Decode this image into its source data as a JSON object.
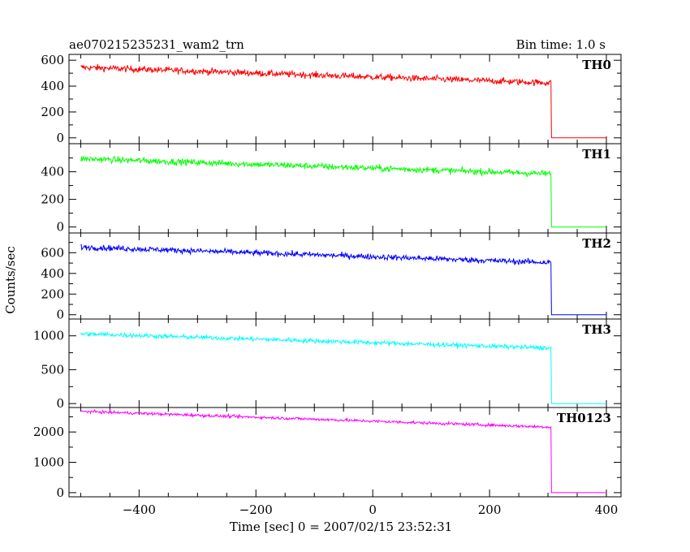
{
  "header": {
    "title": "ae070215235231_wam2_trn",
    "bin_time": "Bin time: 1.0 s"
  },
  "chart_data": {
    "type": "line",
    "title": "ae070215235231_wam2_trn",
    "subtitle": "Bin time: 1.0 s",
    "xlabel": "Time [sec] 0 = 2007/02/15 23:52:31",
    "ylabel": "Counts/sec",
    "xlim": [
      -520,
      425
    ],
    "x_ticks": [
      -400,
      -200,
      0,
      200,
      400
    ],
    "x_tick_labels": [
      "−400",
      "−200",
      "0",
      "200",
      "400"
    ],
    "x_start": -500,
    "x_drop": 305,
    "x_end": 400,
    "panels": [
      {
        "name": "TH0",
        "color": "#ff0000",
        "ylim": [
          -20,
          620
        ],
        "y_ticks": [
          0,
          200,
          400,
          600
        ],
        "y_tick_labels": [
          "0",
          "200",
          "400",
          "600"
        ],
        "level_start": 545,
        "level_end": 425,
        "noise": 24,
        "after_drop": 0
      },
      {
        "name": "TH1",
        "color": "#00ff00",
        "ylim": [
          -20,
          580
        ],
        "y_ticks": [
          0,
          200,
          400
        ],
        "y_tick_labels": [
          "0",
          "200",
          "400"
        ],
        "level_start": 495,
        "level_end": 385,
        "noise": 22,
        "after_drop": 0
      },
      {
        "name": "TH2",
        "color": "#0000ff",
        "ylim": [
          -10,
          760
        ],
        "y_ticks": [
          0,
          200,
          400,
          600
        ],
        "y_tick_labels": [
          "0",
          "200",
          "400",
          "600"
        ],
        "level_start": 655,
        "level_end": 505,
        "noise": 26,
        "after_drop": 0
      },
      {
        "name": "TH3",
        "color": "#00ffff",
        "ylim": [
          -10,
          1200
        ],
        "y_ticks": [
          0,
          500,
          1000
        ],
        "y_tick_labels": [
          "0",
          "500",
          "1000"
        ],
        "level_start": 1030,
        "level_end": 820,
        "noise": 32,
        "after_drop": 0
      },
      {
        "name": "TH0123",
        "color": "#ff00ff",
        "ylim": [
          -30,
          2700
        ],
        "y_ticks": [
          0,
          1000,
          2000
        ],
        "y_tick_labels": [
          "0",
          "1000",
          "2000"
        ],
        "y_minor": [
          500,
          1500,
          2500
        ],
        "level_start": 2680,
        "level_end": 2160,
        "noise": 45,
        "after_drop": 0
      }
    ]
  }
}
